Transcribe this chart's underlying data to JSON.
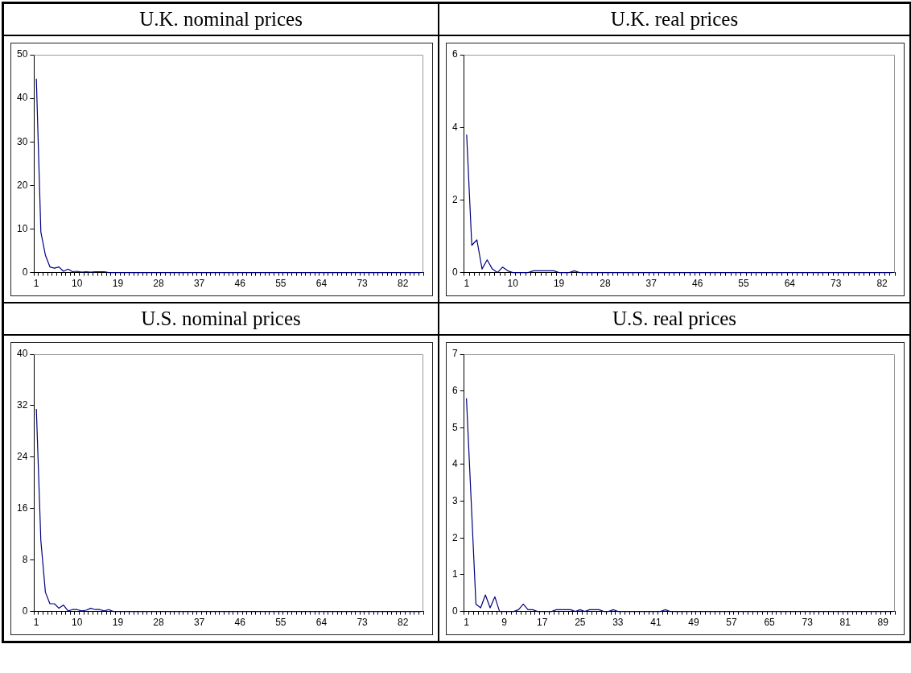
{
  "chart_data": [
    {
      "type": "line",
      "title": "U.K. nominal prices",
      "color": "#000080",
      "ylim": [
        0,
        50
      ],
      "yticks": [
        0,
        10,
        20,
        30,
        40,
        50
      ],
      "categories": [
        "1",
        null,
        null,
        null,
        null,
        null,
        null,
        null,
        null,
        "10",
        null,
        null,
        null,
        null,
        null,
        null,
        null,
        null,
        "19",
        null,
        null,
        null,
        null,
        null,
        null,
        null,
        null,
        "28",
        null,
        null,
        null,
        null,
        null,
        null,
        null,
        null,
        "37",
        null,
        null,
        null,
        null,
        null,
        null,
        null,
        null,
        "46",
        null,
        null,
        null,
        null,
        null,
        null,
        null,
        null,
        "55",
        null,
        null,
        null,
        null,
        null,
        null,
        null,
        null,
        "64",
        null,
        null,
        null,
        null,
        null,
        null,
        null,
        null,
        "73",
        null,
        null,
        null,
        null,
        null,
        null,
        null,
        null,
        "82",
        null,
        null,
        null,
        null
      ],
      "values": [
        44.5,
        9.3,
        4,
        1.3,
        1.0,
        1.3,
        0.3,
        0.8,
        0.2,
        0.3,
        0.1,
        0.2,
        0.1,
        0.2,
        0.2,
        0.2,
        0,
        0,
        0,
        0,
        0,
        0,
        0,
        0,
        0,
        0,
        0,
        0,
        0,
        0,
        0,
        0,
        0,
        0,
        0,
        0,
        0,
        0,
        0,
        0,
        0,
        0,
        0,
        0,
        0,
        0,
        0,
        0,
        0,
        0,
        0,
        0,
        0,
        0,
        0,
        0,
        0,
        0,
        0,
        0,
        0,
        0,
        0,
        0,
        0,
        0,
        0,
        0,
        0,
        0,
        0,
        0,
        0,
        0,
        0,
        0,
        0,
        0,
        0,
        0,
        0,
        0,
        0,
        0,
        0,
        0
      ]
    },
    {
      "type": "line",
      "title": "U.K. real prices",
      "color": "#000080",
      "ylim": [
        0,
        6
      ],
      "yticks": [
        0,
        2,
        4,
        6
      ],
      "categories": [
        "1",
        null,
        null,
        null,
        null,
        null,
        null,
        null,
        null,
        "10",
        null,
        null,
        null,
        null,
        null,
        null,
        null,
        null,
        "19",
        null,
        null,
        null,
        null,
        null,
        null,
        null,
        null,
        "28",
        null,
        null,
        null,
        null,
        null,
        null,
        null,
        null,
        "37",
        null,
        null,
        null,
        null,
        null,
        null,
        null,
        null,
        "46",
        null,
        null,
        null,
        null,
        null,
        null,
        null,
        null,
        "55",
        null,
        null,
        null,
        null,
        null,
        null,
        null,
        null,
        "64",
        null,
        null,
        null,
        null,
        null,
        null,
        null,
        null,
        "73",
        null,
        null,
        null,
        null,
        null,
        null,
        null,
        null,
        "82",
        null,
        null
      ],
      "values": [
        3.8,
        0.75,
        0.9,
        0.1,
        0.35,
        0.1,
        0,
        0.15,
        0.05,
        0,
        0,
        0,
        0,
        0.05,
        0.05,
        0.05,
        0.05,
        0.05,
        0,
        0,
        0,
        0.05,
        0,
        0,
        0,
        0,
        0,
        0,
        0,
        0,
        0,
        0,
        0,
        0,
        0,
        0,
        0,
        0,
        0,
        0,
        0,
        0,
        0,
        0,
        0,
        0,
        0,
        0,
        0,
        0,
        0,
        0,
        0,
        0,
        0,
        0,
        0,
        0,
        0,
        0,
        0,
        0,
        0,
        0,
        0,
        0,
        0,
        0,
        0,
        0,
        0,
        0,
        0,
        0,
        0,
        0,
        0,
        0,
        0,
        0,
        0,
        0,
        0,
        0
      ]
    },
    {
      "type": "line",
      "title": "U.S. nominal prices",
      "color": "#000080",
      "ylim": [
        0,
        40
      ],
      "yticks": [
        0,
        8,
        16,
        24,
        32,
        40
      ],
      "categories": [
        "1",
        null,
        null,
        null,
        null,
        null,
        null,
        null,
        null,
        "10",
        null,
        null,
        null,
        null,
        null,
        null,
        null,
        null,
        "19",
        null,
        null,
        null,
        null,
        null,
        null,
        null,
        null,
        "28",
        null,
        null,
        null,
        null,
        null,
        null,
        null,
        null,
        "37",
        null,
        null,
        null,
        null,
        null,
        null,
        null,
        null,
        "46",
        null,
        null,
        null,
        null,
        null,
        null,
        null,
        null,
        "55",
        null,
        null,
        null,
        null,
        null,
        null,
        null,
        null,
        "64",
        null,
        null,
        null,
        null,
        null,
        null,
        null,
        null,
        "73",
        null,
        null,
        null,
        null,
        null,
        null,
        null,
        null,
        "82",
        null,
        null,
        null,
        null
      ],
      "values": [
        31.5,
        11,
        3,
        1.2,
        1.2,
        0.5,
        1.0,
        0.1,
        0.3,
        0.3,
        0.1,
        0.2,
        0.5,
        0.3,
        0.3,
        0.1,
        0.3,
        0,
        0,
        0,
        0,
        0,
        0,
        0,
        0,
        0,
        0,
        0,
        0,
        0,
        0,
        0,
        0,
        0,
        0,
        0,
        0,
        0,
        0,
        0,
        0,
        0,
        0,
        0,
        0,
        0,
        0,
        0,
        0,
        0,
        0,
        0,
        0,
        0,
        0,
        0,
        0,
        0,
        0,
        0,
        0,
        0,
        0,
        0,
        0,
        0,
        0,
        0,
        0,
        0,
        0,
        0,
        0,
        0,
        0,
        0,
        0,
        0,
        0,
        0,
        0,
        0,
        0,
        0,
        0,
        0
      ]
    },
    {
      "type": "line",
      "title": "U.S. real prices",
      "color": "#000080",
      "ylim": [
        0,
        7
      ],
      "yticks": [
        0,
        1,
        2,
        3,
        4,
        5,
        6,
        7
      ],
      "categories": [
        "1",
        null,
        null,
        null,
        null,
        null,
        null,
        null,
        "9",
        null,
        null,
        null,
        null,
        null,
        null,
        null,
        "17",
        null,
        null,
        null,
        null,
        null,
        null,
        null,
        "25",
        null,
        null,
        null,
        null,
        null,
        null,
        null,
        "33",
        null,
        null,
        null,
        null,
        null,
        null,
        null,
        "41",
        null,
        null,
        null,
        null,
        null,
        null,
        null,
        "49",
        null,
        null,
        null,
        null,
        null,
        null,
        null,
        "57",
        null,
        null,
        null,
        null,
        null,
        null,
        null,
        "65",
        null,
        null,
        null,
        null,
        null,
        null,
        null,
        "73",
        null,
        null,
        null,
        null,
        null,
        null,
        null,
        "81",
        null,
        null,
        null,
        null,
        null,
        null,
        null,
        "89",
        null,
        null
      ],
      "values": [
        5.8,
        3.0,
        0.2,
        0.1,
        0.45,
        0.1,
        0.4,
        0,
        0,
        0,
        0,
        0.05,
        0.2,
        0.05,
        0.05,
        0,
        0,
        0,
        0,
        0.05,
        0.05,
        0.05,
        0.05,
        0,
        0.05,
        0,
        0.05,
        0.05,
        0.05,
        0,
        0,
        0.05,
        0,
        0,
        0,
        0,
        0,
        0,
        0,
        0,
        0,
        0,
        0.05,
        0,
        0,
        0,
        0,
        0,
        0,
        0,
        0,
        0,
        0,
        0,
        0,
        0,
        0,
        0,
        0,
        0,
        0,
        0,
        0,
        0,
        0,
        0,
        0,
        0,
        0,
        0,
        0,
        0,
        0,
        0,
        0,
        0,
        0,
        0,
        0,
        0,
        0,
        0,
        0,
        0,
        0,
        0,
        0,
        0,
        0,
        0,
        0
      ]
    }
  ]
}
